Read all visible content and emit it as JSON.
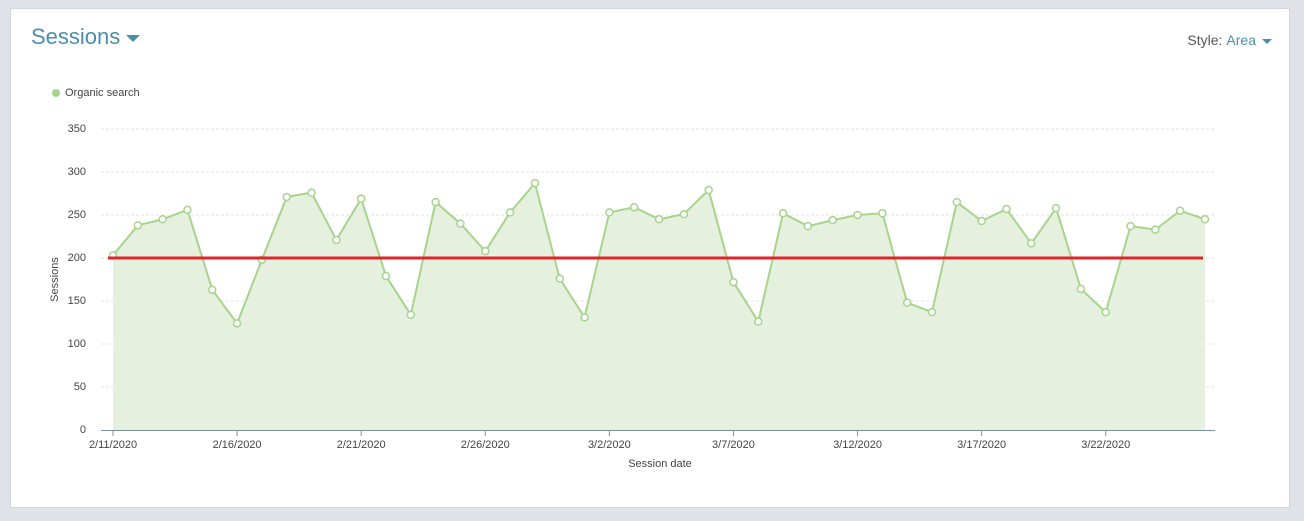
{
  "header": {
    "title": "Sessions",
    "style_label": "Style:",
    "style_value": "Area"
  },
  "chart_data": {
    "type": "area",
    "xlabel": "Session date",
    "ylabel": "Sessions",
    "categories": [
      "2/11/2020",
      null,
      null,
      null,
      null,
      "2/16/2020",
      null,
      null,
      null,
      null,
      "2/21/2020",
      null,
      null,
      null,
      null,
      "2/26/2020",
      null,
      null,
      null,
      null,
      "3/2/2020",
      null,
      null,
      null,
      null,
      "3/7/2020",
      null,
      null,
      null,
      null,
      "3/12/2020",
      null,
      null,
      null,
      null,
      "3/17/2020",
      null,
      null,
      null,
      null,
      "3/22/2020",
      null,
      null,
      null,
      null
    ],
    "series": [
      {
        "name": "Organic search",
        "color": "#a6d48d",
        "fill": "#e6f0de",
        "values": [
          203,
          238,
          245,
          256,
          163,
          124,
          198,
          271,
          276,
          221,
          269,
          179,
          134,
          265,
          240,
          208,
          253,
          287,
          176,
          131,
          253,
          259,
          245,
          251,
          279,
          172,
          126,
          252,
          237,
          244,
          250,
          252,
          148,
          137,
          265,
          243,
          257,
          217,
          258,
          164,
          137,
          237,
          233,
          255,
          245
        ]
      }
    ],
    "reference_line": {
      "value": 200,
      "color": "#e0262b"
    },
    "ylim": [
      0,
      350
    ],
    "yticks": [
      0,
      50,
      100,
      150,
      200,
      250,
      300,
      350
    ],
    "grid": true
  }
}
